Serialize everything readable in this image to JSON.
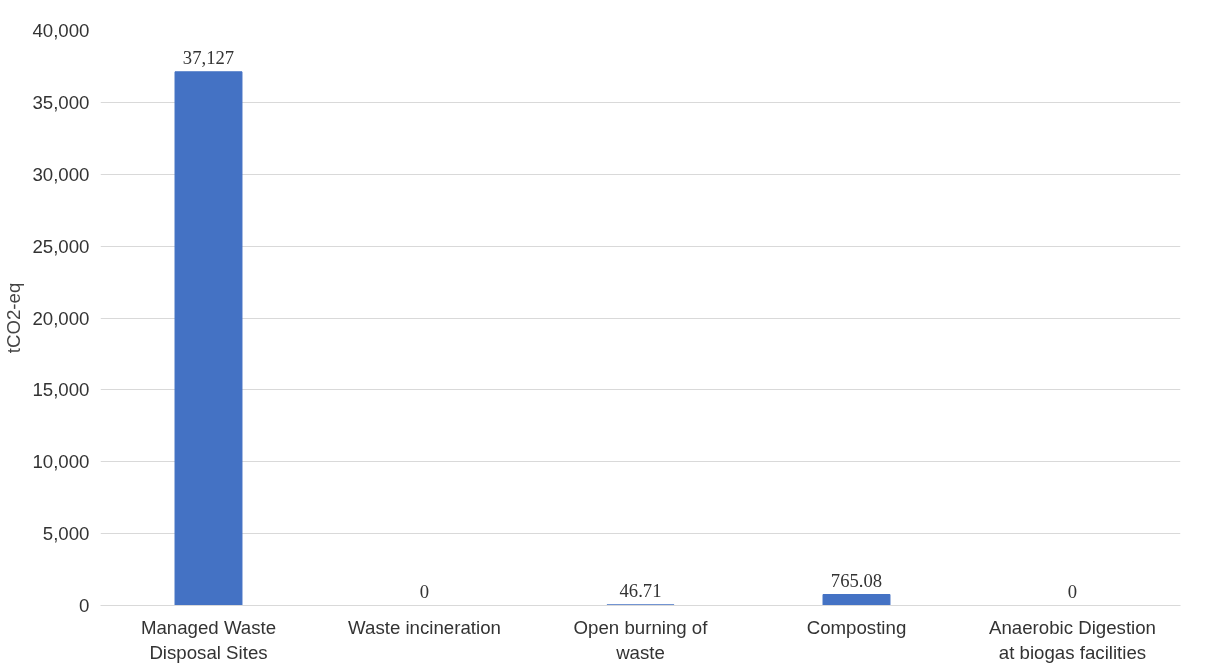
{
  "chart_data": {
    "type": "bar",
    "ylabel": "tCO2-eq",
    "categories": [
      "Managed Waste Disposal Sites",
      "Waste incineration",
      "Open burning of waste",
      "Composting",
      "Anaerobic Digestion at biogas facilities"
    ],
    "values": [
      37127,
      0,
      46.71,
      765.08,
      0
    ],
    "value_labels": [
      "37,127",
      "0",
      "46.71",
      "765.08",
      "0"
    ],
    "color": "#4472c4",
    "ylim": [
      0,
      40000
    ],
    "yticks": [
      {
        "value": 0,
        "label": "0"
      },
      {
        "value": 5000,
        "label": "5,000"
      },
      {
        "value": 10000,
        "label": "10,000"
      },
      {
        "value": 15000,
        "label": "15,000"
      },
      {
        "value": 20000,
        "label": "20,000"
      },
      {
        "value": 25000,
        "label": "25,000"
      },
      {
        "value": 30000,
        "label": "30,000"
      },
      {
        "value": 35000,
        "label": "35,000"
      },
      {
        "value": 40000,
        "label": "40,000"
      }
    ],
    "grid": "y"
  }
}
